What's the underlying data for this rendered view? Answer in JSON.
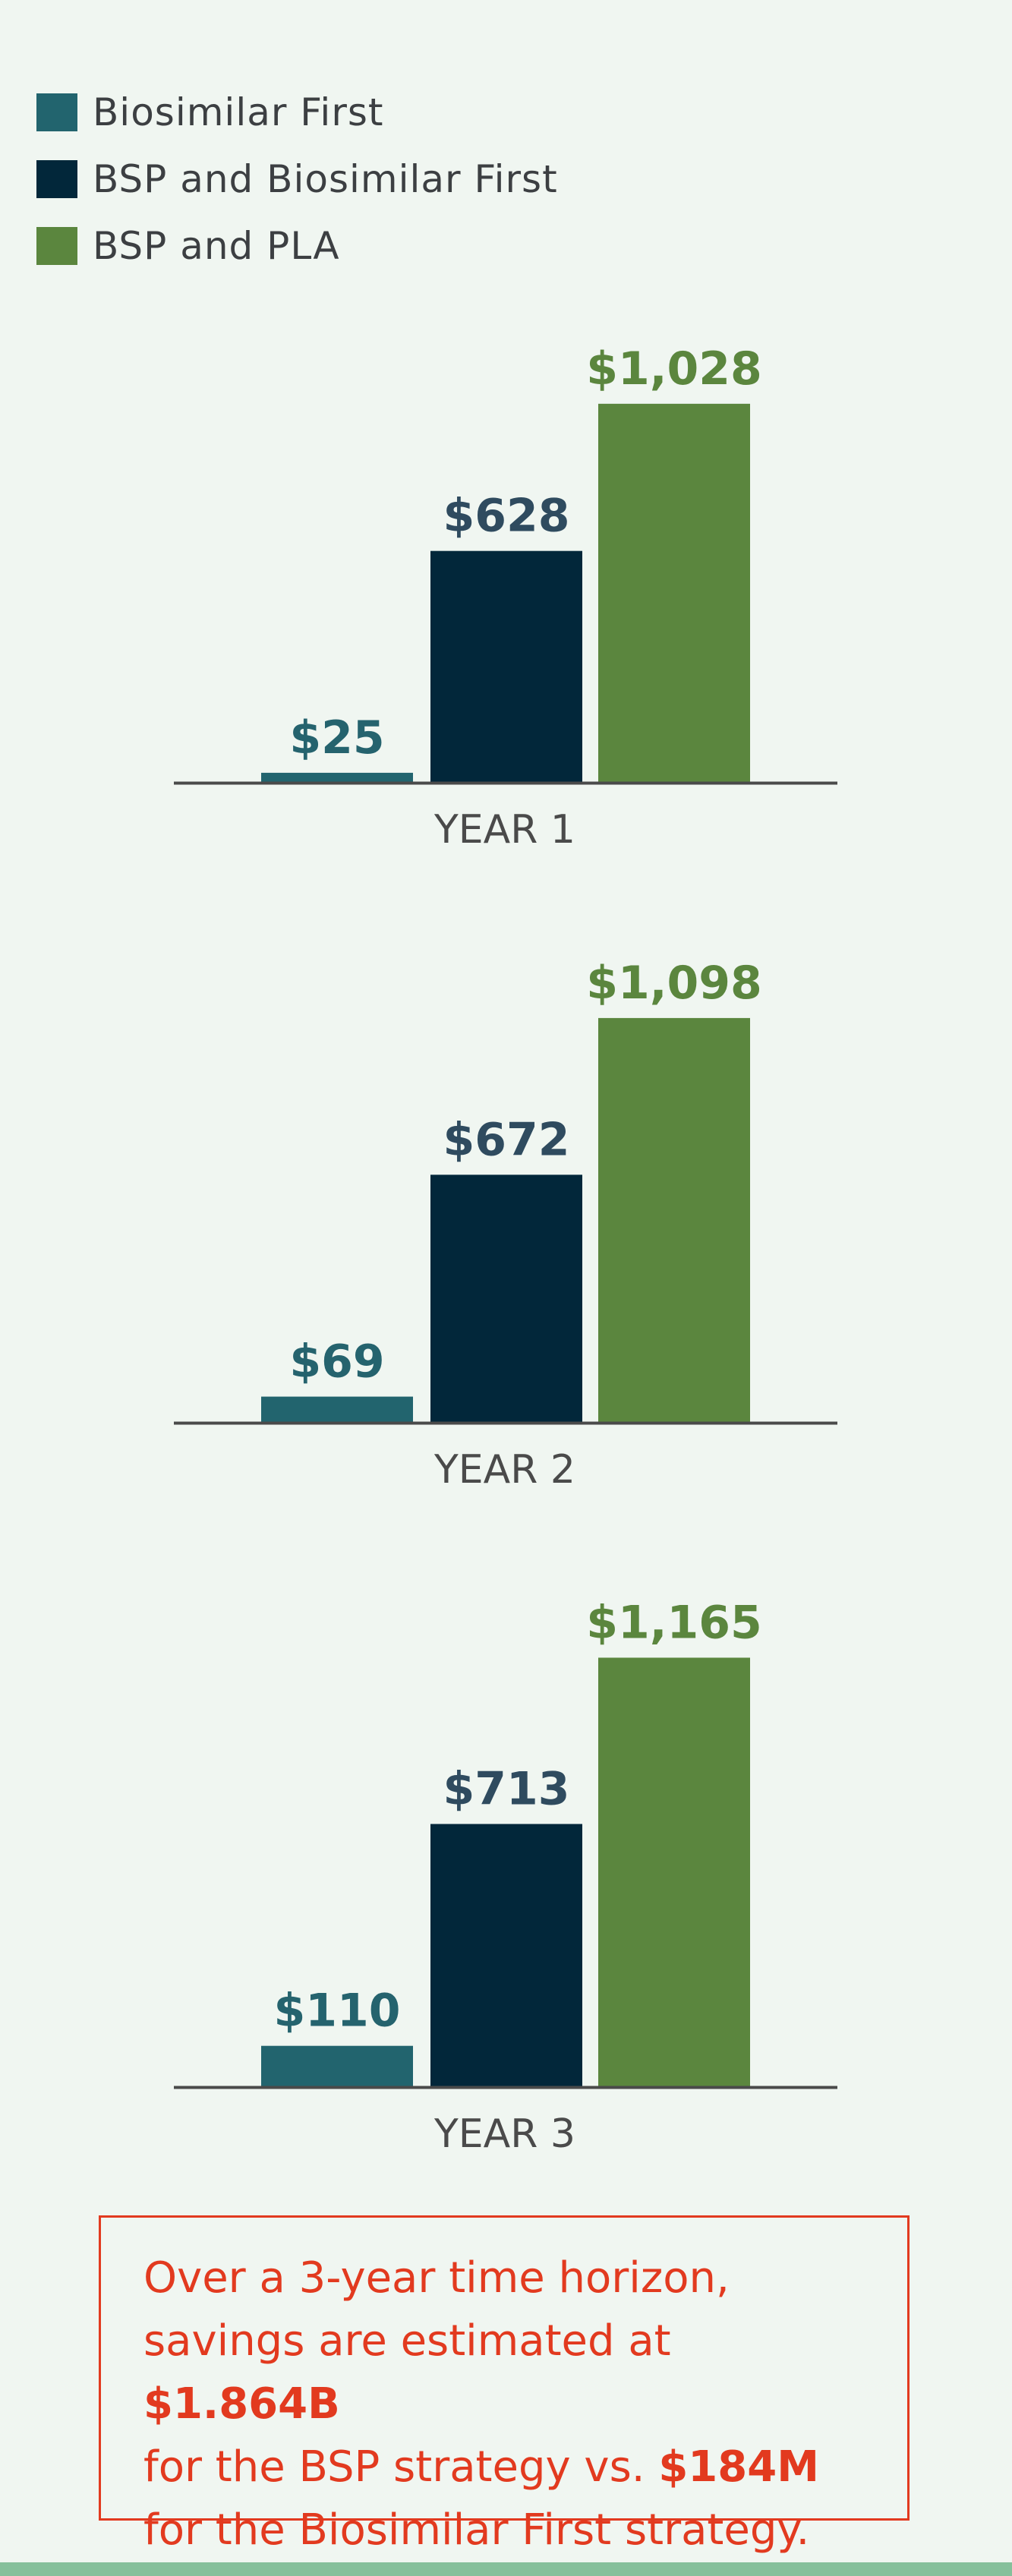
{
  "colors": {
    "background": "#f0f6f1",
    "series_1": "#22646e",
    "series_2": "#02273a",
    "series_3": "#5b863e",
    "year_label": "#4a4a4a",
    "callout": "#e23a1f",
    "bottom_bar": "#86c09b"
  },
  "chart_data": {
    "type": "bar",
    "legend_position": "top-left",
    "grid": false,
    "series": [
      {
        "name": "Biosimilar First",
        "color": "#22646e",
        "label_color": "#25636e",
        "values": [
          25,
          69,
          110
        ],
        "labels": [
          "$25",
          "$69",
          "$110"
        ]
      },
      {
        "name": "BSP and Biosimilar First",
        "color": "#02273a",
        "label_color": "#2f4b5f",
        "values": [
          628,
          672,
          713
        ],
        "labels": [
          "$628",
          "$672",
          "$713"
        ]
      },
      {
        "name": "BSP and PLA",
        "color": "#5b863e",
        "label_color": "#5b863e",
        "values": [
          1028,
          1098,
          1165
        ],
        "labels": [
          "$1,028",
          "$1,098",
          "$1,165"
        ]
      }
    ],
    "categories": [
      "YEAR 1",
      "YEAR 2",
      "YEAR 3"
    ]
  },
  "summary": {
    "line1": "Over a 3-year time horizon,",
    "line2_pre": "savings are estimated at ",
    "line2_bold": "$1.864B",
    "line3_pre": "for the BSP strategy vs. ",
    "line3_bold": "$184M",
    "line4": "for the Biosimilar First strategy."
  }
}
